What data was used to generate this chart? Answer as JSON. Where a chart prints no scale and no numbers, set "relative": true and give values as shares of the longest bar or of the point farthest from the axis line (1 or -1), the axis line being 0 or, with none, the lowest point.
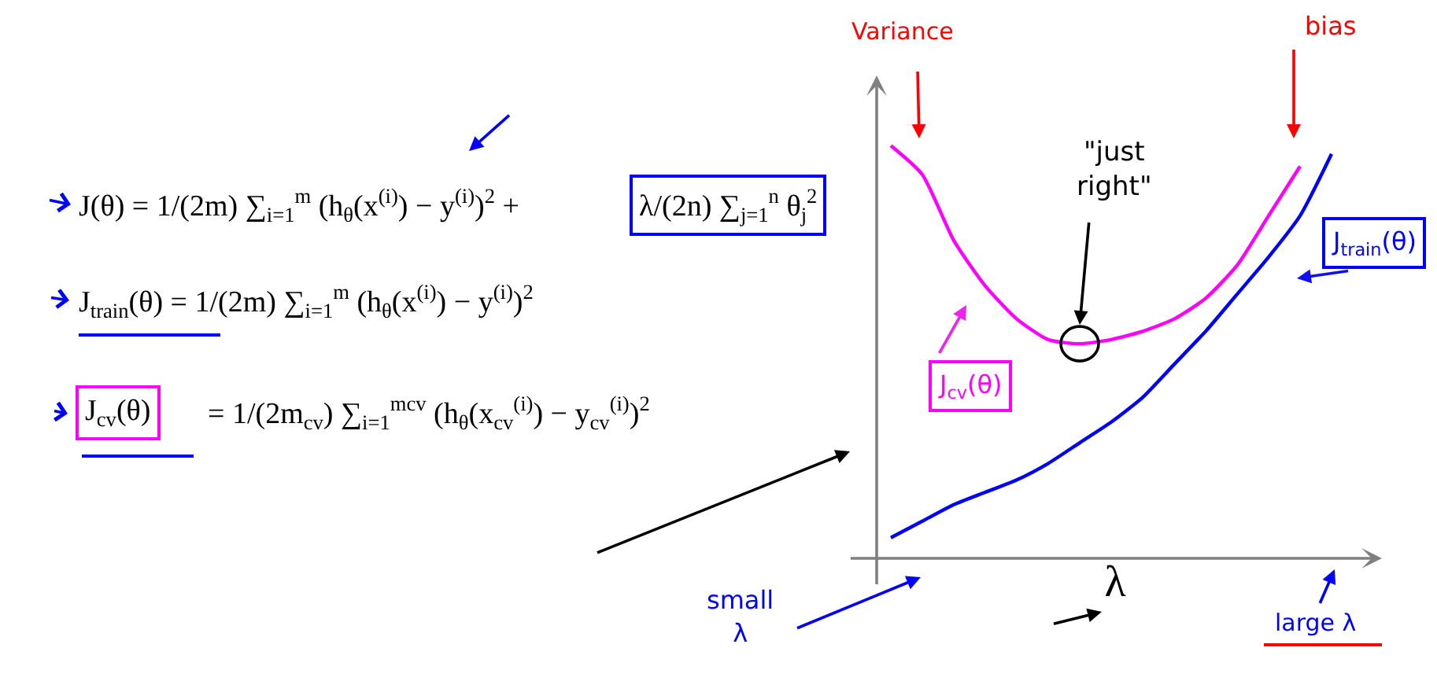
{
  "chart_data": {
    "type": "line",
    "relative": true,
    "xlabel": "λ",
    "categories": [
      null,
      null,
      null,
      null,
      null,
      null,
      null,
      null,
      null,
      null,
      null,
      null,
      null,
      null,
      null
    ],
    "series": [
      {
        "name": "J$_{cv}$(θ)",
        "color": "#ff00ff",
        "values": [
          1.0,
          0.93,
          0.77,
          0.66,
          0.58,
          0.53,
          0.52,
          0.53,
          0.55,
          0.58,
          0.63,
          0.71,
          0.83,
          0.95,
          null
        ]
      },
      {
        "name": "J$_{train}$(θ)",
        "color": "#0000ff",
        "values": [
          0.05,
          0.09,
          0.13,
          0.16,
          0.19,
          0.23,
          0.28,
          0.33,
          0.39,
          0.47,
          0.55,
          0.64,
          0.73,
          0.83,
          0.98
        ]
      }
    ],
    "annotations": [
      "J(θ) = 1/(2m) ∑$_{i=1}$$^{m}$ (h$_{θ}$(x$^{(i)}$) − y$^{(i)}$)$^{2}$ +",
      "λ/(2n) ∑$_{j=1}$$^{n}$ θ$_{j}$$^{2}$",
      "J$_{train}$(θ) = 1/(2m) ∑$_{i=1}$$^{m}$ (h$_{θ}$(x$^{(i)}$) − y$^{(i)}$)$^{2}$",
      "J$_{cv}$(θ)",
      "= 1/(2m$_{cv}$) ∑$_{i=1}$$^{mcv}$ (h$_{θ}$(x$_{cv}$$^{(i)}$) − y$_{cv}$$^{(i)}$)$^{2}$",
      "Variance",
      "bias",
      "\"just\nright\"",
      "small\nλ",
      "large λ"
    ]
  }
}
